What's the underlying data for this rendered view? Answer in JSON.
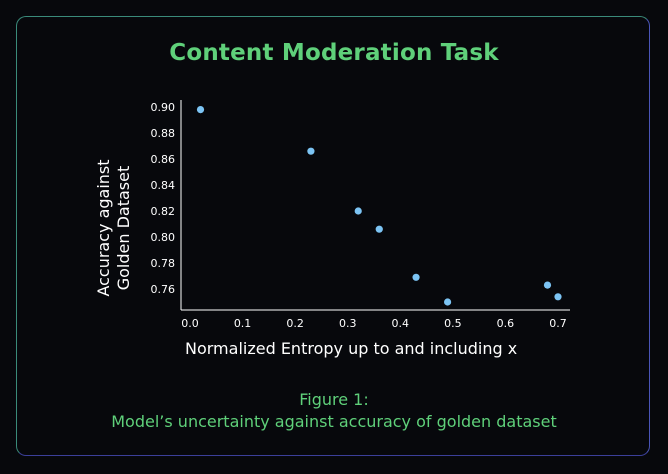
{
  "chart": {
    "title": "Content Moderation Task",
    "ylabel_line1": "Accuracy against",
    "ylabel_line2": "Golden Dataset",
    "xlabel": "Normalized Entropy up to and including x",
    "caption_line1": "Figure 1:",
    "caption_line2": "Model’s uncertainty against accuracy of golden dataset"
  },
  "colors": {
    "accent": "#5fd07a",
    "point": "#7cc4f4",
    "background": "#07080c"
  },
  "chart_data": {
    "type": "scatter",
    "title": "Content Moderation Task",
    "xlabel": "Normalized Entropy up to and including x",
    "ylabel": "Accuracy against Golden Dataset",
    "x": [
      0.02,
      0.23,
      0.32,
      0.36,
      0.43,
      0.49,
      0.68,
      0.7
    ],
    "y": [
      0.898,
      0.866,
      0.82,
      0.806,
      0.769,
      0.75,
      0.763,
      0.754
    ],
    "xlim": [
      0.0,
      0.7
    ],
    "ylim": [
      0.75,
      0.9
    ],
    "xticks": [
      "0.0",
      "0.1",
      "0.2",
      "0.3",
      "0.4",
      "0.5",
      "0.6",
      "0.7"
    ],
    "yticks": [
      "0.76",
      "0.78",
      "0.80",
      "0.82",
      "0.84",
      "0.86",
      "0.88",
      "0.90"
    ],
    "grid": false,
    "legend": "none"
  }
}
